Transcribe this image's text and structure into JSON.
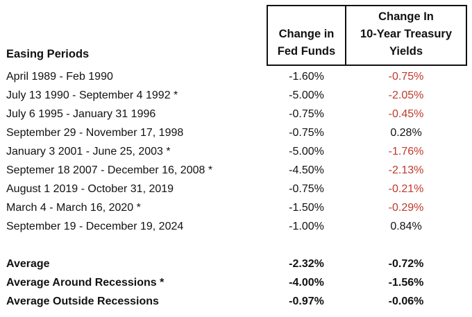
{
  "header": {
    "period_label": "Easing Periods",
    "fed_funds_label": [
      "Change in",
      "Fed Funds"
    ],
    "treasury_label": [
      "Change In",
      "10-Year Treasury",
      "Yields"
    ]
  },
  "rows": [
    {
      "period": "April 1989 - Feb 1990",
      "fed_funds": "-1.60%",
      "treasury": "-0.75%",
      "treasury_color": "#c0392b"
    },
    {
      "period": "July 13 1990 - September 4 1992 *",
      "fed_funds": "-5.00%",
      "treasury": "-2.05%",
      "treasury_color": "#c0392b"
    },
    {
      "period": "July 6 1995 - January 31 1996",
      "fed_funds": "-0.75%",
      "treasury": "-0.45%",
      "treasury_color": "#c0392b"
    },
    {
      "period": "September 29 - November 17, 1998",
      "fed_funds": "-0.75%",
      "treasury": "0.28%",
      "treasury_color": "#111111"
    },
    {
      "period": "January 3 2001 - June 25, 2003 *",
      "fed_funds": "-5.00%",
      "treasury": "-1.76%",
      "treasury_color": "#c0392b"
    },
    {
      "period": "Septemer 18 2007 - December 16, 2008 *",
      "fed_funds": "-4.50%",
      "treasury": "-2.13%",
      "treasury_color": "#c0392b"
    },
    {
      "period": "August 1 2019 - October 31, 2019",
      "fed_funds": "-0.75%",
      "treasury": "-0.21%",
      "treasury_color": "#c0392b"
    },
    {
      "period": "March 4 - March 16, 2020 *",
      "fed_funds": "-1.50%",
      "treasury": "-0.29%",
      "treasury_color": "#c0392b"
    },
    {
      "period": "September 19 - December 19, 2024",
      "fed_funds": "-1.00%",
      "treasury": "0.84%",
      "treasury_color": "#111111"
    }
  ],
  "summary": [
    {
      "period": "Average",
      "fed_funds": "-2.32%",
      "treasury": "-0.72%"
    },
    {
      "period": "Average Around Recessions *",
      "fed_funds": "-4.00%",
      "treasury": "-1.56%"
    },
    {
      "period": "Average Outside Recessions",
      "fed_funds": "-0.97%",
      "treasury": "-0.06%"
    }
  ]
}
